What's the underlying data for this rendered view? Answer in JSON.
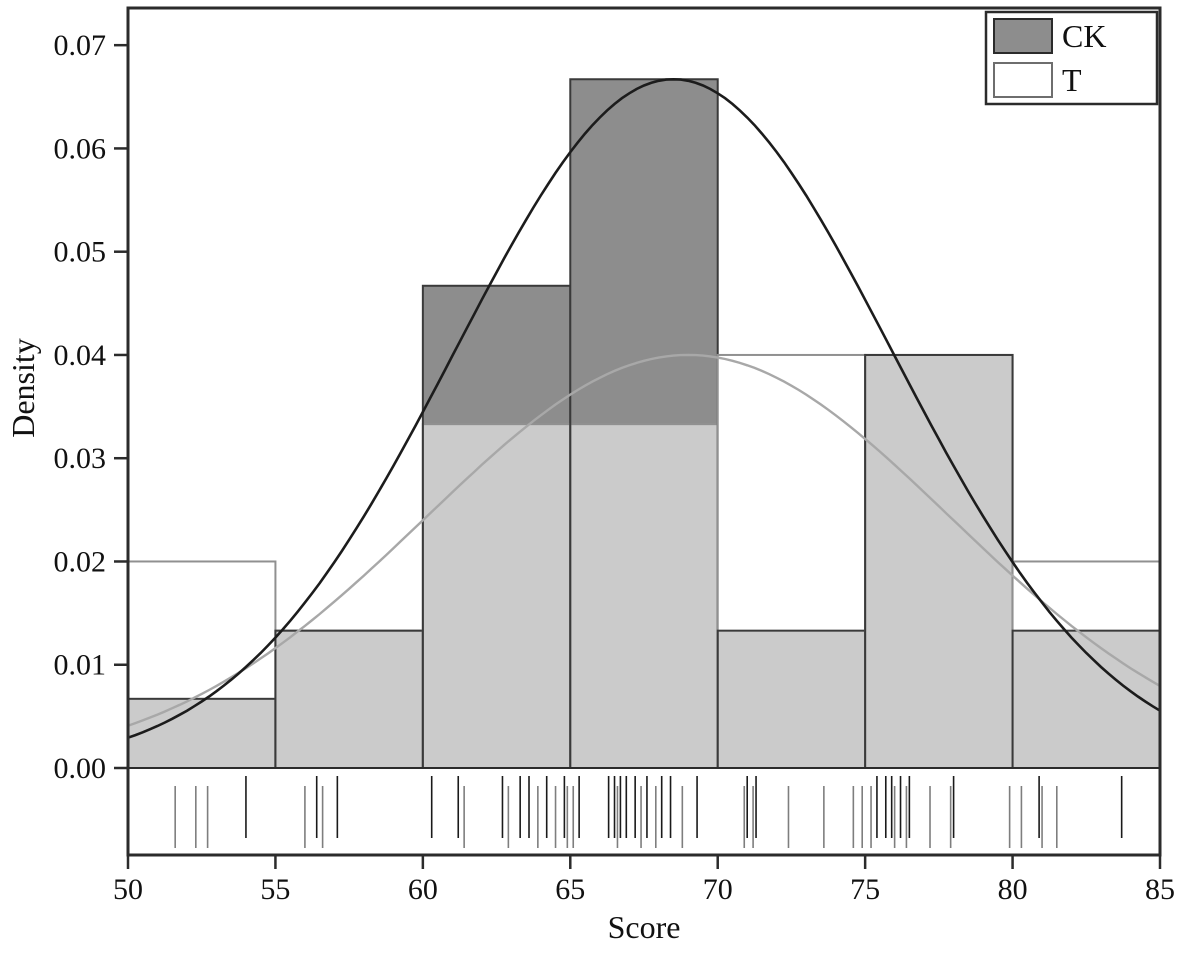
{
  "chart_data": {
    "type": "bar",
    "subtype": "overlaid-histogram-with-density-curves-and-rug",
    "title": "",
    "xlabel": "Score",
    "ylabel": "Density",
    "xlim": [
      50,
      85
    ],
    "ylim": [
      0,
      0.0736
    ],
    "x_ticks": [
      "50",
      "55",
      "60",
      "65",
      "70",
      "75",
      "80",
      "85"
    ],
    "x_tick_values": [
      50,
      55,
      60,
      65,
      70,
      75,
      80,
      85
    ],
    "y_ticks": [
      "0.00",
      "0.01",
      "0.02",
      "0.03",
      "0.04",
      "0.05",
      "0.06",
      "0.07"
    ],
    "y_tick_values": [
      0,
      0.01,
      0.02,
      0.03,
      0.04,
      0.05,
      0.06,
      0.07
    ],
    "grid": false,
    "legend_position": "top-right",
    "bin_edges": [
      50,
      55,
      60,
      65,
      70,
      75,
      80,
      85
    ],
    "series": [
      {
        "name": "CK",
        "fill": "#8d8d8d",
        "stroke": "#3a3a3a",
        "densities": [
          0.0067,
          0.0133,
          0.0467,
          0.0667,
          0.0133,
          0.04,
          0.0133
        ],
        "curve": {
          "mean": 68.5,
          "sigma": 7.4,
          "peak": 0.0667,
          "color": "#1c1c1c",
          "width": 2.6
        }
      },
      {
        "name": "T",
        "fill": "#ffffff",
        "stroke": "#909090",
        "densities": [
          0.02,
          0.0133,
          0.0333,
          0.0333,
          0.04,
          0.04,
          0.02
        ],
        "curve": {
          "mean": 69.0,
          "sigma": 8.9,
          "peak": 0.04,
          "color": "#a8a8a8",
          "width": 2.4
        }
      }
    ],
    "overlap_fill": "#cbcbcb",
    "rug": {
      "ck_color": "#1a1a1a",
      "t_color": "#7e7e7e",
      "ck": [
        54.0,
        56.4,
        57.1,
        60.3,
        61.2,
        62.7,
        63.3,
        63.6,
        64.2,
        64.8,
        65.3,
        66.3,
        66.5,
        66.7,
        66.9,
        67.2,
        67.6,
        68.1,
        68.4,
        69.3,
        71.0,
        71.3,
        75.4,
        75.7,
        75.9,
        76.2,
        76.5,
        78.0,
        80.9,
        83.7
      ],
      "t": [
        51.6,
        52.3,
        52.7,
        56.0,
        56.6,
        61.4,
        62.9,
        63.9,
        64.5,
        64.9,
        65.1,
        66.6,
        67.4,
        67.9,
        68.8,
        70.9,
        71.2,
        72.4,
        73.6,
        74.6,
        74.9,
        75.2,
        76.0,
        76.4,
        77.2,
        77.9,
        79.9,
        80.3,
        81.0,
        81.5
      ]
    },
    "legend": [
      {
        "label": "CK",
        "swatch_fill": "#8d8d8d",
        "swatch_stroke": "#2b2b2b"
      },
      {
        "label": "T",
        "swatch_fill": "#ffffff",
        "swatch_stroke": "#6e6e6e"
      }
    ],
    "frame_color": "#2b2b2b"
  }
}
